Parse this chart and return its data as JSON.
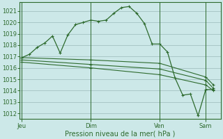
{
  "bg_color": "#cce8e8",
  "grid_major_color": "#9ababa",
  "grid_minor_color": "#b8d8d8",
  "line_color": "#2d6a2d",
  "ylabel_ticks": [
    1012,
    1013,
    1014,
    1015,
    1016,
    1017,
    1018,
    1019,
    1020,
    1021
  ],
  "xlabel": "Pression niveau de la mer( hPa )",
  "xtick_labels": [
    "Jeu",
    "Dim",
    "Ven",
    "Sam"
  ],
  "xtick_positions": [
    0,
    9,
    18,
    24
  ],
  "ylim": [
    1011.5,
    1021.8
  ],
  "xlim": [
    -0.3,
    26.0
  ],
  "series1_x": [
    0,
    1,
    2,
    3,
    4,
    5,
    6,
    7,
    8,
    9,
    10,
    11,
    12,
    13,
    14,
    15,
    16,
    17,
    18,
    19,
    20,
    21,
    22,
    23,
    24,
    25
  ],
  "series1_y": [
    1016.9,
    1017.2,
    1017.8,
    1018.2,
    1018.8,
    1017.3,
    1018.9,
    1019.8,
    1020.0,
    1020.2,
    1020.1,
    1020.2,
    1020.8,
    1021.3,
    1021.4,
    1020.8,
    1019.9,
    1018.1,
    1018.1,
    1017.4,
    1015.1,
    1013.6,
    1013.7,
    1011.8,
    1014.1,
    1014.1
  ],
  "series2_x": [
    0,
    9,
    18,
    24,
    25
  ],
  "series2_y": [
    1016.9,
    1016.7,
    1016.4,
    1015.2,
    1014.5
  ],
  "series3_x": [
    0,
    9,
    18,
    24,
    25
  ],
  "series3_y": [
    1016.7,
    1016.3,
    1015.9,
    1014.9,
    1014.2
  ],
  "series4_x": [
    0,
    9,
    18,
    24,
    25
  ],
  "series4_y": [
    1016.5,
    1016.0,
    1015.4,
    1014.5,
    1014.0
  ]
}
